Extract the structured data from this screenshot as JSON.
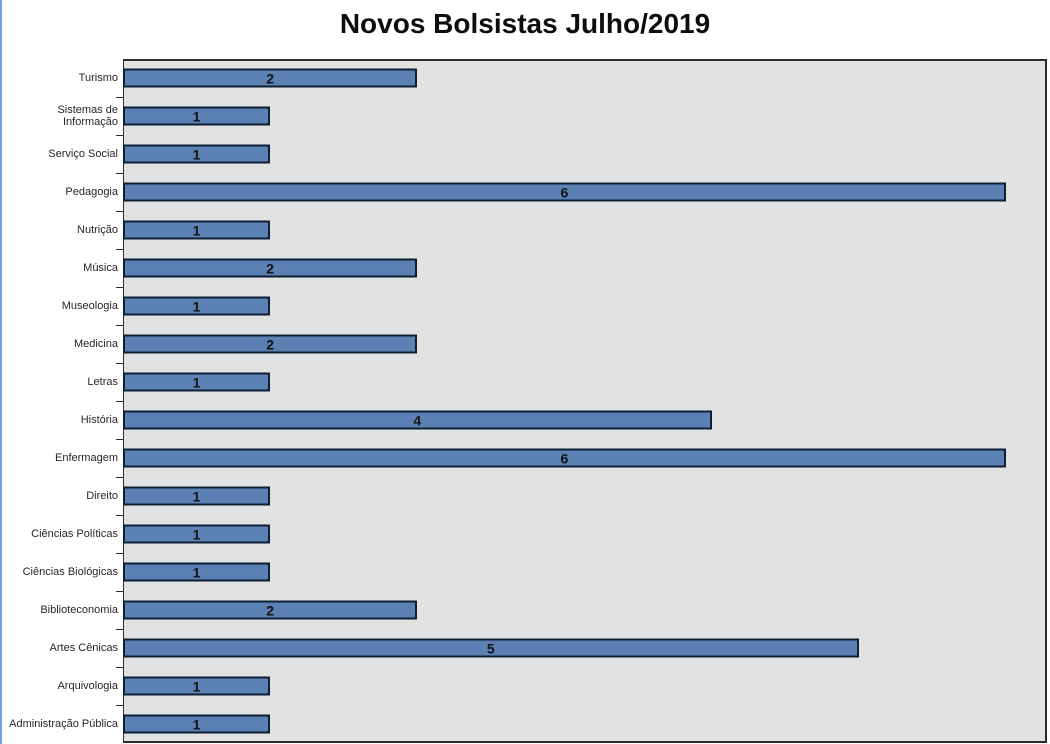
{
  "window": {
    "left_border_color": "#6FA8DC"
  },
  "chart_data": {
    "type": "bar",
    "orientation": "horizontal",
    "title": "Novos Bolsistas Julho/2019",
    "categories": [
      "Turismo",
      "Sistemas de Informação",
      "Serviço Social",
      "Pedagogia",
      "Nutrição",
      "Música",
      "Museologia",
      "Medicina",
      "Letras",
      "História",
      "Enfermagem",
      "Direito",
      "Ciências Políticas",
      "Ciências Biológicas",
      "Biblioteconomia",
      "Artes Cênicas",
      "Arquivologia",
      "Administração Pública"
    ],
    "values": [
      2,
      1,
      1,
      6,
      1,
      2,
      1,
      2,
      1,
      4,
      6,
      1,
      1,
      1,
      2,
      5,
      1,
      1
    ],
    "xlabel": "",
    "ylabel": "",
    "xlim": [
      0,
      6.28
    ],
    "grid": false,
    "legend": false,
    "value_label_position": "center",
    "bar_color": "#5B80B4",
    "bar_border_color": "#0D1F33",
    "plot_bg": "#E2E2E2",
    "plot_border_color": "#2B2B2B",
    "title_color": "#0D0D0D",
    "label_color": "#262626",
    "value_label_color": "#121212"
  }
}
